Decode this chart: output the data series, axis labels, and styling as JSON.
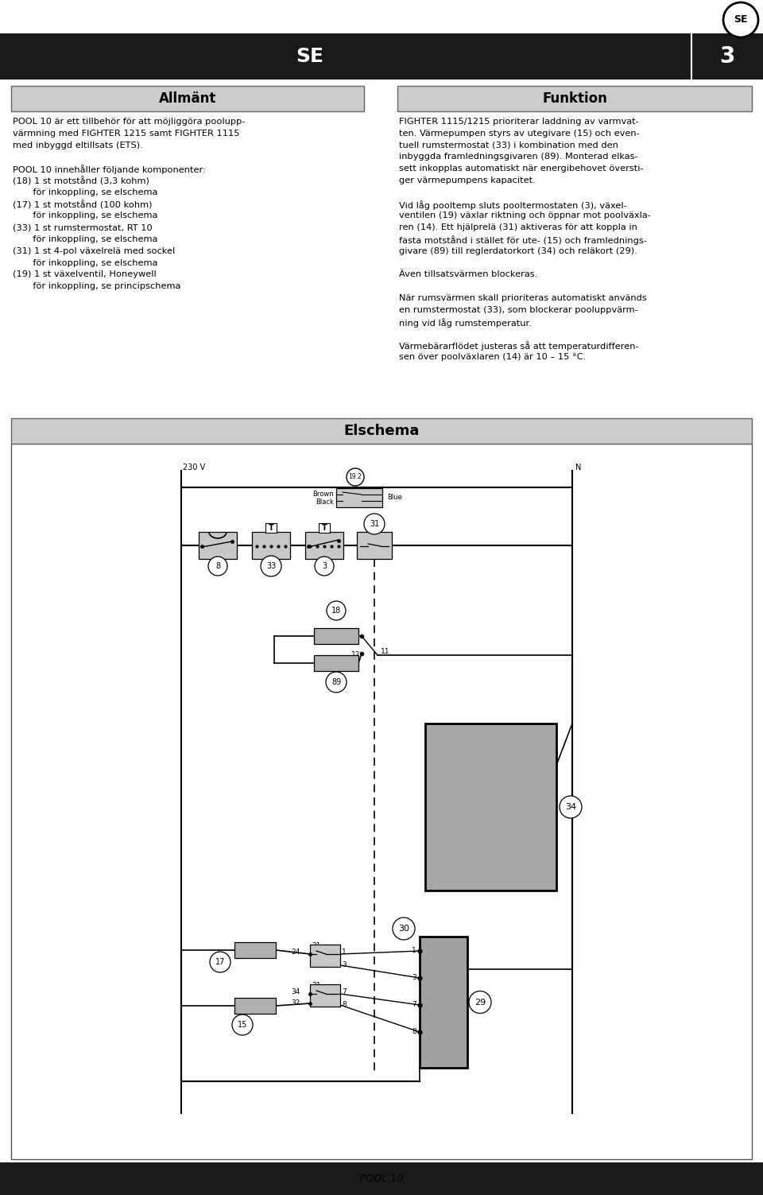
{
  "page_width": 9.6,
  "page_height": 15.03,
  "bg_color": "#ffffff",
  "header_bg": "#1a1a1a",
  "header_text_color": "#ffffff",
  "header_title": "SE",
  "header_number": "3",
  "section_bg": "#cccccc",
  "almant_title": "Allmänt",
  "funktion_title": "Funktion",
  "elschema_title": "Elschema",
  "footer_text": "POOL 10",
  "se_circle_label": "SE",
  "almant_lines": [
    "POOL 10 är ett tillbehör för att möjliggöra poolupp-",
    "värmning med FIGHTER 1215 samt FIGHTER 1115",
    "med inbyggd eltillsats (ETS).",
    "",
    "POOL 10 innehåller följande komponenter:",
    "(18) 1 st motstånd (3,3 kohm)",
    "       för inkoppling, se elschema",
    "(17) 1 st motstånd (100 kohm)",
    "       för inkoppling, se elschema",
    "(33) 1 st rumstermostat, RT 10",
    "       för inkoppling, se elschema",
    "(31) 1 st 4-pol växelrelä med sockel",
    "       för inkoppling, se elschema",
    "(19) 1 st växelventil, Honeywell",
    "       för inkoppling, se principschema"
  ],
  "funktion_lines": [
    "FIGHTER 1115/1215 prioriterar laddning av varmvat-",
    "ten. Värmepumpen styrs av utegivare (15) och even-",
    "tuell rumstermostat (33) i kombination med den",
    "inbyggda framledningsgivaren (89). Monterad elkas-",
    "sett inkopplas automatiskt när energibehovet översti-",
    "ger värmepumpens kapacitet.",
    "",
    "Vid låg pooltemp sluts pooltermostaten (3), växel-",
    "ventilen (19) växlar riktning och öppnar mot poolväxla-",
    "ren (14). Ett hjälprelä (31) aktiveras för att koppla in",
    "fasta motstånd i stället för ute- (15) och framlednings-",
    "givare (89) till reglerdatorkort (34) och reläkort (29).",
    "",
    "Även tillsatsvärmen blockeras.",
    "",
    "När rumsvärmen skall prioriteras automatiskt används",
    "en rumstermostat (33), som blockerar pooluppvärm-",
    "ning vid låg rumstemperatur.",
    "",
    "Värmebärarflödet justeras så att temperaturdifferen-",
    "sen över poolväxlaren (14) är 10 – 15 °C."
  ]
}
